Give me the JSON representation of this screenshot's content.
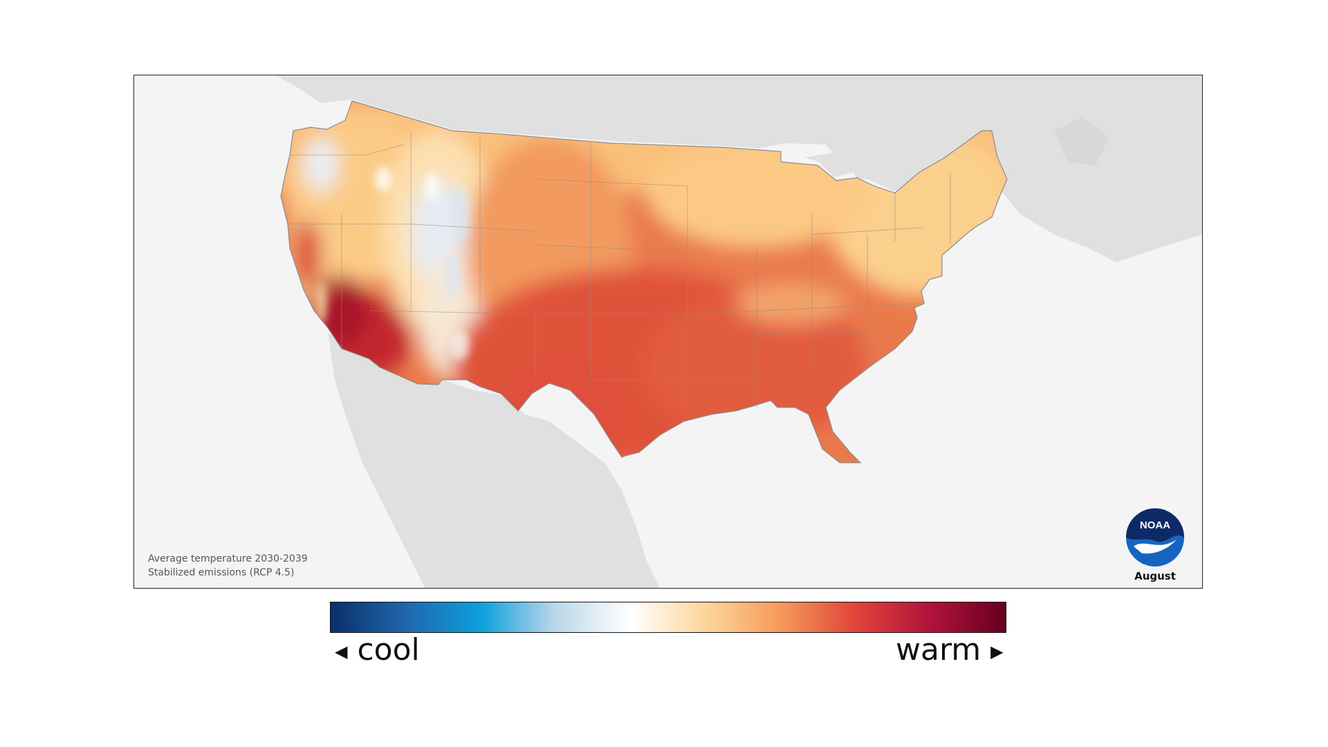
{
  "map": {
    "caption_line1": "Average temperature 2030-2039",
    "caption_line2": "Stabilized emissions (RCP 4.5)",
    "month": "August",
    "logo_text": "NOAA"
  },
  "legend": {
    "cool_label": "cool",
    "warm_label": "warm",
    "cool_arrow": "◀",
    "warm_arrow": "▶",
    "colors": [
      "#08306b",
      "#2166ac",
      "#0ca0dc",
      "#bcd7ea",
      "#ffffff",
      "#fdd59a",
      "#f59a5a",
      "#e0443a",
      "#b2123d",
      "#67001f"
    ]
  },
  "colors": {
    "land_background": "#e0e0e0",
    "water": "#f4f4f4",
    "hot": "#e35a3c",
    "hottest": "#b21f2b",
    "warm": "#f8b770",
    "mild": "#fddb9a",
    "cool": "#dbe6f2",
    "noaa_blue": "#1565c0",
    "noaa_navy": "#0d2a66"
  }
}
